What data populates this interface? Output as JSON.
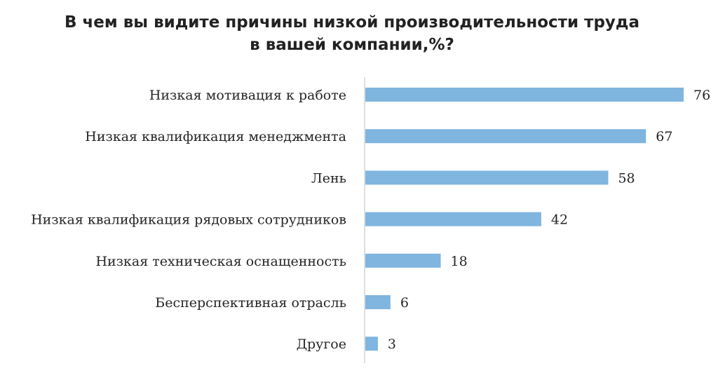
{
  "chart_data": {
    "type": "bar",
    "orientation": "horizontal",
    "title_lines": [
      "В чем вы видите причины низкой производительности труда",
      "в  вашей компании,%?"
    ],
    "categories": [
      "Низкая мотивация к работе",
      "Низкая квалификация менеджмента",
      "Лень",
      "Низкая квалификация рядовых сотрудников",
      "Низкая техническая оснащенность",
      "Бесперспективная отрасль",
      "Другое"
    ],
    "values": [
      76,
      67,
      58,
      42,
      18,
      6,
      3
    ],
    "xlim": [
      0,
      76
    ],
    "grid": false,
    "legend": "none",
    "colors": {
      "bar": "#7fb5df",
      "axis": "#bfbfbf",
      "text": "#262626"
    }
  }
}
